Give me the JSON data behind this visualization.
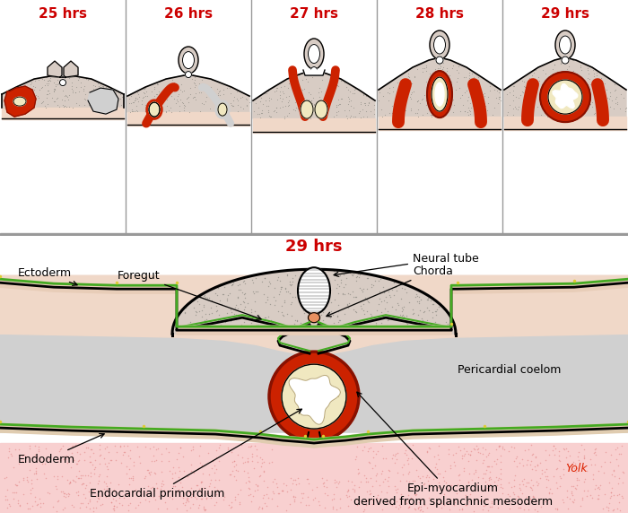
{
  "stage_labels": [
    "25 hrs",
    "26 hrs",
    "27 hrs",
    "28 hrs",
    "29 hrs"
  ],
  "stage_label_color": "#cc0000",
  "stage_label_fontsize": 11,
  "detail_label": "29 hrs",
  "detail_label_color": "#cc0000",
  "detail_label_fontsize": 13,
  "colors": {
    "red": "#cc2200",
    "dark_red": "#881100",
    "light_pink": "#f5e0e0",
    "yolk_pink": "#f8d0d0",
    "green_line": "#44aa22",
    "yellow_heart": "#e8d888",
    "cream": "#f0e8c0",
    "black": "#111111",
    "light_gray": "#d0d0d0",
    "pale_flesh": "#f0d8c8",
    "spotted_bg": "#d8ccc4",
    "white": "#ffffff",
    "divider": "#999999",
    "orange_dot": "#e89060",
    "mid_gray": "#b8b8b8"
  }
}
